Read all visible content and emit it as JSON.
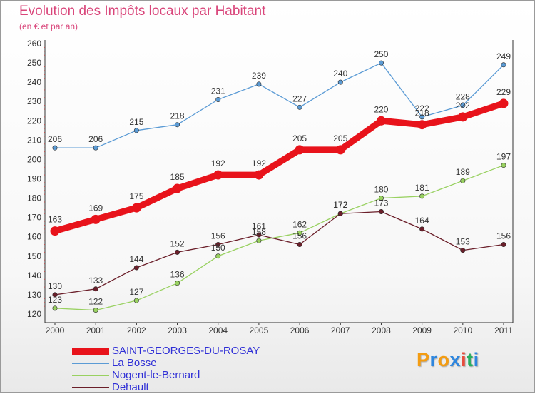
{
  "title": "Evolution des Impôts locaux par Habitant",
  "subtitle": "(en € et par an)",
  "logo": {
    "text": "Proxiti",
    "colors": [
      "#f39c12",
      "#2e86de",
      "#f39c12",
      "#2e86de",
      "#e74c3c",
      "#27ae60",
      "#2e86de"
    ]
  },
  "chart_data": {
    "type": "line",
    "x": [
      "2000",
      "2001",
      "2002",
      "2003",
      "2004",
      "2005",
      "2006",
      "2007",
      "2008",
      "2009",
      "2010",
      "2011"
    ],
    "ylim": [
      120,
      260
    ],
    "yticks": [
      120,
      130,
      140,
      150,
      160,
      170,
      180,
      190,
      200,
      210,
      220,
      230,
      240,
      250,
      260
    ],
    "grid": false,
    "legend_position": "bottom-left",
    "series": [
      {
        "name": "SAINT-GEORGES-DU-ROSAY",
        "color": "#e8131b",
        "values": [
          163,
          169,
          175,
          185,
          192,
          192,
          205,
          205,
          220,
          218,
          222,
          229
        ]
      },
      {
        "name": "La Bosse",
        "color": "#5b9bd5",
        "values": [
          206,
          206,
          215,
          218,
          231,
          239,
          227,
          240,
          250,
          222,
          228,
          249
        ]
      },
      {
        "name": "Nogent-le-Bernard",
        "color": "#99d161",
        "values": [
          123,
          122,
          127,
          136,
          150,
          158,
          162,
          172,
          180,
          181,
          189,
          197
        ]
      },
      {
        "name": "Dehault",
        "color": "#6b1f2a",
        "values": [
          130,
          133,
          144,
          152,
          156,
          161,
          156,
          172,
          173,
          164,
          153,
          156
        ]
      }
    ]
  }
}
